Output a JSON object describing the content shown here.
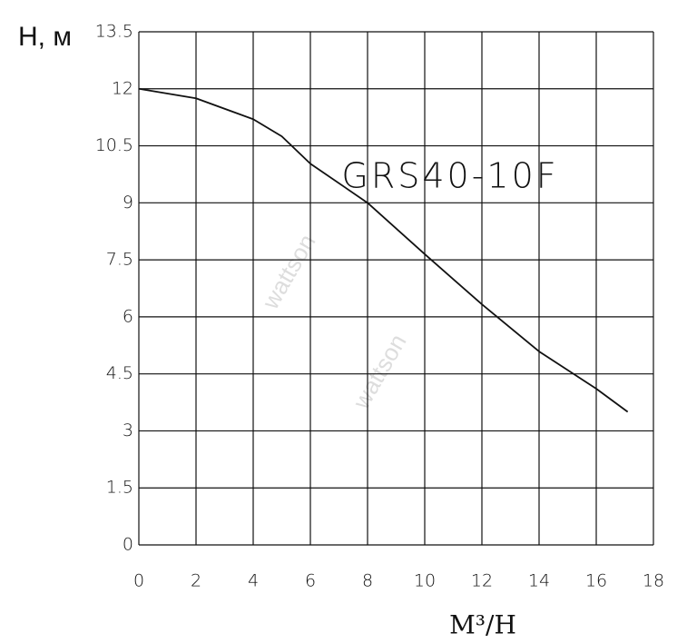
{
  "chart_data": {
    "type": "line",
    "y_label": "H, м",
    "x_label": "M³/H",
    "annotation": "GRS40-10F",
    "watermarks": [
      "wattson",
      "wattson"
    ],
    "x": [
      0,
      2,
      4,
      5,
      6,
      8,
      10,
      12,
      14,
      16,
      17.1
    ],
    "series": [
      {
        "name": "GRS40-10F",
        "color": "#111111",
        "values": [
          12,
          11.75,
          11.2,
          10.75,
          10.03,
          9,
          7.65,
          6.33,
          5.09,
          4.11,
          3.5
        ]
      }
    ],
    "xlim": [
      0,
      18
    ],
    "xticks": [
      0,
      2,
      4,
      6,
      8,
      10,
      12,
      14,
      16,
      18
    ],
    "ylim": [
      0,
      13.5
    ],
    "yticks": [
      0,
      1.5,
      3,
      4.5,
      6,
      7.5,
      9,
      10.5,
      12,
      13.5
    ],
    "grid": true
  }
}
